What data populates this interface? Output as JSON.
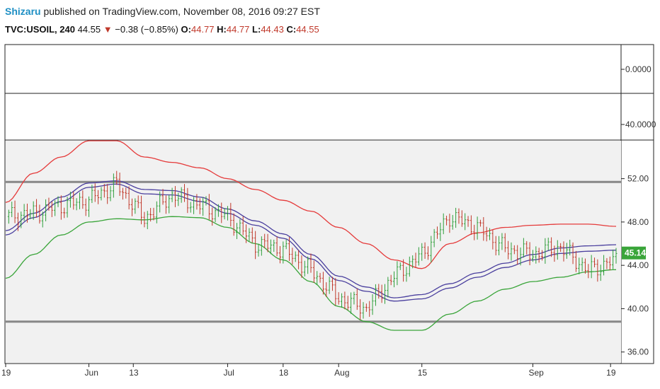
{
  "header": {
    "author": "Shizaru",
    "published_text": " published on TradingView.com, November 08, 2016 09:27 EST",
    "symbol": "TVC:USOIL, 240",
    "last": "44.55",
    "change": "−0.38 (−0.85%)",
    "open_label": "O:",
    "open": "44.77",
    "high_label": "H:",
    "high": "44.77",
    "low_label": "L:",
    "low": "44.43",
    "close_label": "C:",
    "close": "44.55"
  },
  "colors": {
    "down": "#c0392b",
    "up": "#2e9e3a",
    "upper_band": "#e53a3a",
    "lower_band": "#3aa53a",
    "center_band": "#4a3f9e",
    "level_line": "#888888",
    "price_badge": "#3aa53a"
  },
  "chart_data": [
    {
      "type": "line",
      "pane": "indicator-1",
      "y_ticks": [
        "0.0000"
      ],
      "series": []
    },
    {
      "type": "line",
      "pane": "indicator-2",
      "y_ticks": [
        "40.0000"
      ],
      "series": []
    },
    {
      "type": "candlestick",
      "pane": "main",
      "x_ticks": [
        "19",
        "Jun",
        "13",
        "Jul",
        "18",
        "Aug",
        "15",
        "Sep",
        "19"
      ],
      "y_ticks": [
        "52.00",
        "48.00",
        "44.00",
        "40.00",
        "36.00"
      ],
      "ylim": [
        35,
        55.5
      ],
      "x": [
        "May 19",
        "May 26",
        "Jun 1",
        "Jun 8",
        "Jun 13",
        "Jun 20",
        "Jun 27",
        "Jul 1",
        "Jul 8",
        "Jul 13",
        "Jul 18",
        "Jul 25",
        "Aug 1",
        "Aug 5",
        "Aug 10",
        "Aug 15",
        "Aug 19",
        "Aug 25",
        "Sep 1",
        "Sep 6",
        "Sep 12",
        "Sep 19",
        "Sep 22"
      ],
      "last_price": "45.14",
      "horizontal_levels": [
        51.7,
        38.8
      ],
      "series": [
        {
          "name": "",
          "role": "price",
          "values": [
            48.5,
            48.8,
            49.5,
            50.0,
            51.5,
            48.3,
            50.5,
            49.5,
            48.5,
            46.0,
            45.5,
            43.5,
            41.0,
            40.0,
            43.0,
            45.0,
            48.5,
            47.5,
            45.5,
            45.0,
            45.7,
            43.5,
            44.5
          ]
        },
        {
          "name": "",
          "role": "upper-band",
          "values": [
            49.8,
            52.5,
            54.0,
            55.5,
            55.5,
            54.0,
            53.5,
            53.0,
            52.0,
            51.0,
            50.0,
            49.0,
            47.5,
            46.0,
            44.5,
            43.7,
            46.0,
            47.0,
            47.5,
            47.7,
            47.8,
            47.8,
            47.6
          ]
        },
        {
          "name": "",
          "role": "center-band-1",
          "values": [
            47.2,
            48.8,
            50.3,
            51.6,
            51.8,
            51.0,
            50.9,
            50.3,
            49.2,
            48.1,
            46.9,
            45.0,
            43.0,
            42.0,
            41.0,
            41.3,
            42.3,
            43.3,
            44.2,
            45.0,
            45.6,
            45.8,
            45.9
          ]
        },
        {
          "name": "",
          "role": "center-band-2",
          "values": [
            46.8,
            48.4,
            49.9,
            51.2,
            51.5,
            50.6,
            50.5,
            49.9,
            48.8,
            47.7,
            46.5,
            44.6,
            42.6,
            41.6,
            40.7,
            40.9,
            41.9,
            42.9,
            43.8,
            44.5,
            45.1,
            45.3,
            45.4
          ]
        },
        {
          "name": "",
          "role": "lower-band",
          "values": [
            42.8,
            45.0,
            46.8,
            48.0,
            48.3,
            48.2,
            48.5,
            48.4,
            47.5,
            46.0,
            44.5,
            42.5,
            40.2,
            38.8,
            38.0,
            38.0,
            39.5,
            40.7,
            41.8,
            42.5,
            42.9,
            43.4,
            43.6
          ]
        }
      ]
    }
  ]
}
